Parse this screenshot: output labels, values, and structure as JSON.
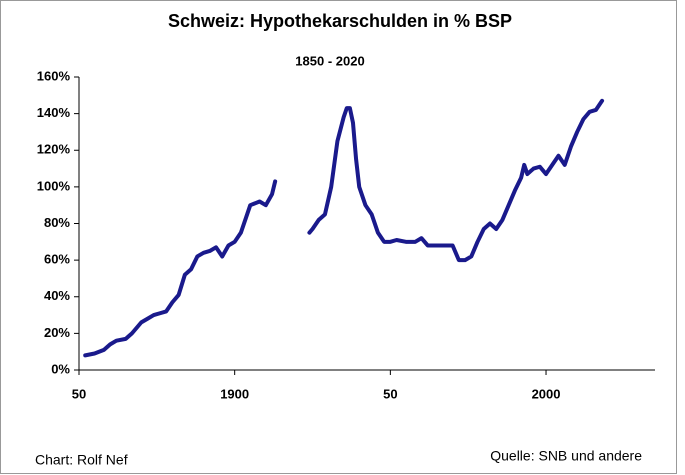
{
  "chart_data": {
    "type": "line",
    "title": "Schweiz: Hypothekarschulden in % BSP",
    "subtitle": "1850 - 2020",
    "footer_left": "Chart: Rolf Nef",
    "footer_right": "Quelle: SNB und andere",
    "x": [
      1852,
      1855,
      1858,
      1860,
      1862,
      1865,
      1867,
      1870,
      1872,
      1874,
      1876,
      1878,
      1880,
      1882,
      1884,
      1886,
      1888,
      1890,
      1892,
      1894,
      1896,
      1898,
      1900,
      1902,
      1904,
      1905,
      1908,
      1910,
      1912,
      1913,
      1919,
      1924,
      1925,
      1927,
      1929,
      1931,
      1933,
      1935,
      1936,
      1937,
      1938,
      1939,
      1940,
      1942,
      1944,
      1946,
      1948,
      1950,
      1952,
      1955,
      1958,
      1960,
      1962,
      1965,
      1968,
      1970,
      1972,
      1974,
      1976,
      1978,
      1980,
      1982,
      1984,
      1986,
      1988,
      1990,
      1992,
      1993,
      1994,
      1996,
      1998,
      2000,
      2002,
      2004,
      2006,
      2008,
      2010,
      2012,
      2014,
      2016,
      2018
    ],
    "series": [
      {
        "name": "Hypothekarschulden",
        "color": "#1a1a8c",
        "values": [
          8,
          9,
          11,
          14,
          16,
          17,
          20,
          26,
          28,
          30,
          31,
          32,
          37,
          41,
          52,
          55,
          62,
          64,
          65,
          67,
          62,
          68,
          70,
          75,
          85,
          90,
          92,
          90,
          96,
          103,
          null,
          75,
          77,
          82,
          85,
          100,
          125,
          138,
          143,
          143,
          135,
          115,
          100,
          90,
          85,
          75,
          70,
          70,
          71,
          70,
          70,
          72,
          68,
          68,
          68,
          68,
          60,
          60,
          62,
          70,
          77,
          80,
          77,
          82,
          90,
          98,
          105,
          112,
          107,
          110,
          111,
          107,
          112,
          117,
          112,
          122,
          130,
          137,
          141,
          142,
          147
        ]
      }
    ],
    "xlim": [
      1850,
      2035
    ],
    "ylim": [
      0,
      160
    ],
    "xticks": [
      {
        "value": 1850,
        "label": "50"
      },
      1900,
      {
        "value": 1950,
        "label": "50"
      },
      2000
    ],
    "yticks": [
      {
        "value": 0,
        "label": "0%"
      },
      {
        "value": 20,
        "label": "20%"
      },
      {
        "value": 40,
        "label": "40%"
      },
      {
        "value": 60,
        "label": "60%"
      },
      {
        "value": 80,
        "label": "80%"
      },
      {
        "value": 100,
        "label": "100%"
      },
      {
        "value": 120,
        "label": "120%"
      },
      {
        "value": 140,
        "label": "140%"
      },
      {
        "value": 160,
        "label": "160%"
      }
    ]
  }
}
